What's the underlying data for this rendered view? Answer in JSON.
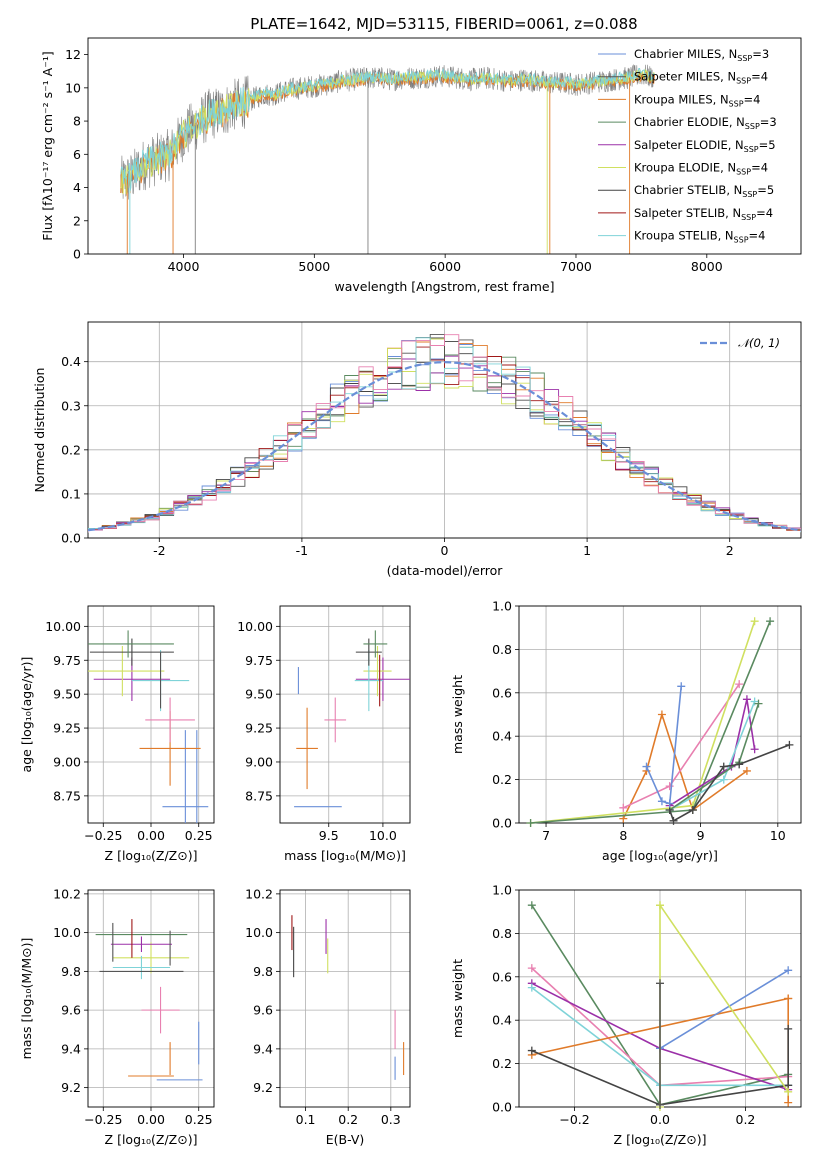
{
  "figure_title": "PLATE=1642, MJD=53115, FIBERID=0061, z=0.088",
  "colors": {
    "chabrier_miles": "#6a8fd8",
    "salpeter_miles": "#555555",
    "kroupa_miles": "#e07b2a",
    "chabrier_elodie": "#5a8a60",
    "salpeter_elodie": "#9b30a8",
    "kroupa_elodie": "#d0e060",
    "chabrier_stelib": "#444444",
    "salpeter_stelib": "#a01818",
    "kroupa_stelib": "#7fd3d8",
    "pink": "#e880b0",
    "data": "#808080",
    "grid": "#b0b0b0",
    "normal_curve": "#6a8fd8"
  },
  "chart_data": [
    {
      "id": "spectrum",
      "type": "line",
      "title": "PLATE=1642, MJD=53115, FIBERID=0061, z=0.088",
      "xlabel": "wavelength [Angstrom, rest frame]",
      "ylabel": "Flux [fλ10⁻¹⁷ erg cm⁻² s⁻¹ A⁻¹]",
      "xlim": [
        3270,
        8720
      ],
      "ylim": [
        0,
        13
      ],
      "xticks": [
        4000,
        5000,
        6000,
        7000,
        8000
      ],
      "yticks": [
        0,
        2,
        4,
        6,
        8,
        10,
        12
      ],
      "grid": false,
      "legend_position": "top-right",
      "legend": [
        {
          "label": "Chabrier MILES, N",
          "sub": "SSP",
          "suffix": "=3",
          "color": "#6a8fd8"
        },
        {
          "label": "Salpeter MILES, N",
          "sub": "SSP",
          "suffix": "=4",
          "color": "#555555"
        },
        {
          "label": "Kroupa MILES, N",
          "sub": "SSP",
          "suffix": "=4",
          "color": "#e07b2a"
        },
        {
          "label": "Chabrier ELODIE, N",
          "sub": "SSP",
          "suffix": "=3",
          "color": "#5a8a60"
        },
        {
          "label": "Salpeter ELODIE, N",
          "sub": "SSP",
          "suffix": "=5",
          "color": "#9b30a8"
        },
        {
          "label": "Kroupa ELODIE, N",
          "sub": "SSP",
          "suffix": "=4",
          "color": "#d0e060"
        },
        {
          "label": "Chabrier STELIB, N",
          "sub": "SSP",
          "suffix": "=5",
          "color": "#444444"
        },
        {
          "label": "Salpeter STELIB, N",
          "sub": "SSP",
          "suffix": "=4",
          "color": "#a01818"
        },
        {
          "label": "Kroupa STELIB, N",
          "sub": "SSP",
          "suffix": "=4",
          "color": "#7fd3d8"
        }
      ],
      "continuum": {
        "x": [
          3520,
          3600,
          3700,
          3800,
          3900,
          4000,
          4100,
          4200,
          4300,
          4400,
          4500,
          4600,
          4700,
          4800,
          4900,
          5000,
          5100,
          5200,
          5300,
          5400,
          5500,
          5600,
          5700,
          5800,
          5900,
          6000,
          6100,
          6200,
          6300,
          6400,
          6500,
          6600,
          6700,
          6800,
          6900,
          7000,
          7100,
          7200,
          7300,
          7400,
          7500,
          7600
        ],
        "y": [
          4.3,
          4.6,
          5.4,
          5.7,
          6.0,
          7.2,
          7.8,
          8.4,
          8.6,
          9.0,
          9.2,
          9.6,
          9.6,
          9.9,
          10.0,
          10.1,
          10.2,
          10.4,
          10.5,
          10.6,
          10.6,
          10.5,
          10.6,
          10.6,
          10.7,
          10.7,
          10.6,
          10.5,
          10.6,
          10.5,
          10.4,
          10.5,
          10.4,
          10.3,
          10.3,
          10.2,
          10.3,
          10.4,
          10.5,
          10.6,
          10.8,
          10.6
        ]
      },
      "artifacts": [
        {
          "x": 3570,
          "color": "#e07b2a"
        },
        {
          "x": 3590,
          "color": "#7fd3d8"
        },
        {
          "x": 3920,
          "color": "#e07b2a"
        },
        {
          "x": 4090,
          "color": "#808080"
        },
        {
          "x": 5410,
          "color": "#808080"
        },
        {
          "x": 6780,
          "color": "#d0e060"
        },
        {
          "x": 6800,
          "color": "#e07b2a"
        },
        {
          "x": 7410,
          "color": "#e07b2a"
        }
      ]
    },
    {
      "id": "residuals",
      "type": "line",
      "xlabel": "(data-model)/error",
      "ylabel": "Normed distribution",
      "xlim": [
        -2.5,
        2.5
      ],
      "ylim": [
        0,
        0.49
      ],
      "xticks": [
        -2,
        -1,
        0,
        1,
        2
      ],
      "yticks": [
        0.0,
        0.1,
        0.2,
        0.3,
        0.4
      ],
      "grid": true,
      "legend_position": "top-right",
      "legend": [
        {
          "label": "𝒩(0, 1)",
          "color": "#6a8fd8",
          "dashed": true
        }
      ],
      "series": [
        {
          "name": "N(0,1)",
          "distribution": "normal",
          "mean": 0,
          "sigma": 1
        }
      ],
      "bin_edges_range": [
        -2.5,
        2.5
      ],
      "bin_width": 0.1
    },
    {
      "id": "age_vs_Z",
      "type": "scatter",
      "xlabel": "Z [log₁₀(Z/Z⊙)]",
      "ylabel": "age  [log₁₀(age/yr)]",
      "xlim": [
        -0.33,
        0.33
      ],
      "ylim": [
        8.55,
        10.15
      ],
      "xticks": [
        -0.25,
        0.0,
        0.25
      ],
      "xticklabels": [
        "−0.25",
        "0.00",
        "0.25"
      ],
      "yticks": [
        8.75,
        9.0,
        9.25,
        9.5,
        9.75,
        10.0
      ],
      "yticklabels": [
        "8.75",
        "9.00",
        "9.25",
        "9.50",
        "9.75",
        "10.00"
      ],
      "grid": true,
      "points": [
        {
          "x": 0.18,
          "y": 8.67,
          "xerr": 0.12,
          "yerr": 1.13,
          "color": "#6a8fd8"
        },
        {
          "x": 0.24,
          "y": 8.67,
          "xerr": 0.0,
          "yerr": 1.13,
          "color": "#6a8fd8"
        },
        {
          "x": 0.1,
          "y": 9.1,
          "xerr": 0.16,
          "yerr": 0.55,
          "color": "#e07b2a"
        },
        {
          "x": 0.1,
          "y": 9.31,
          "xerr": 0.13,
          "yerr": 0.33,
          "color": "#e880b0"
        },
        {
          "x": -0.1,
          "y": 9.61,
          "xerr": 0.2,
          "yerr": 0.32,
          "color": "#9b30a8"
        },
        {
          "x": -0.15,
          "y": 9.67,
          "xerr": 0.22,
          "yerr": 0.37,
          "color": "#d0e060"
        },
        {
          "x": 0.05,
          "y": 9.6,
          "xerr": 0.15,
          "yerr": 0.45,
          "color": "#7fd3d8"
        },
        {
          "x": -0.1,
          "y": 9.81,
          "xerr": 0.22,
          "yerr": 0.2,
          "color": "#444444"
        },
        {
          "x": -0.12,
          "y": 9.87,
          "xerr": 0.24,
          "yerr": 0.2,
          "color": "#5a8a60"
        },
        {
          "x": 0.05,
          "y": 9.6,
          "xerr": 0.0,
          "yerr": 0.41,
          "color": "#555555"
        }
      ]
    },
    {
      "id": "age_vs_mass",
      "type": "scatter",
      "xlabel": "mass [log₁₀(M/M⊙)]",
      "ylabel": "",
      "xlim": [
        9.05,
        10.25
      ],
      "ylim": [
        8.55,
        10.15
      ],
      "xticks": [
        9.5,
        10.0
      ],
      "xticklabels": [
        "9.5",
        "10.0"
      ],
      "yticks": [
        8.75,
        9.0,
        9.25,
        9.5,
        9.75,
        10.0
      ],
      "yticklabels": [
        "8.75",
        "9.00",
        "9.25",
        "9.50",
        "9.75",
        "10.00"
      ],
      "grid": true,
      "points": [
        {
          "x": 9.4,
          "y": 8.67,
          "xerr": 0.22,
          "yerr": 0.0,
          "color": "#6a8fd8"
        },
        {
          "x": 9.22,
          "y": 9.6,
          "xerr": 0.0,
          "yerr": 0.2,
          "color": "#6a8fd8"
        },
        {
          "x": 9.3,
          "y": 9.1,
          "xerr": 0.1,
          "yerr": 0.6,
          "color": "#e07b2a"
        },
        {
          "x": 9.56,
          "y": 9.31,
          "xerr": 0.1,
          "yerr": 0.33,
          "color": "#e880b0"
        },
        {
          "x": 10.0,
          "y": 9.61,
          "xerr": 0.25,
          "yerr": 0.32,
          "color": "#9b30a8"
        },
        {
          "x": 9.95,
          "y": 9.67,
          "xerr": 0.13,
          "yerr": 0.37,
          "color": "#d0e060"
        },
        {
          "x": 9.87,
          "y": 9.6,
          "xerr": 0.13,
          "yerr": 0.45,
          "color": "#7fd3d8"
        },
        {
          "x": 9.87,
          "y": 9.81,
          "xerr": 0.12,
          "yerr": 0.2,
          "color": "#444444"
        },
        {
          "x": 9.93,
          "y": 9.87,
          "xerr": 0.11,
          "yerr": 0.2,
          "color": "#5a8a60"
        },
        {
          "x": 9.97,
          "y": 9.6,
          "xerr": 0.0,
          "yerr": 0.38,
          "color": "#a01818"
        }
      ]
    },
    {
      "id": "weight_vs_age",
      "type": "line",
      "xlabel": "age  [log₁₀(age/yr)]",
      "ylabel": "mass weight",
      "xlim": [
        6.65,
        10.3
      ],
      "ylim": [
        0,
        1.0
      ],
      "xticks": [
        7,
        8,
        9,
        10
      ],
      "yticks": [
        0.0,
        0.2,
        0.4,
        0.6,
        0.8,
        1.0
      ],
      "yticklabels": [
        "0.0",
        "0.2",
        "0.4",
        "0.6",
        "0.8",
        "1.0"
      ],
      "grid": true,
      "series": [
        {
          "color": "#e07b2a",
          "x": [
            8.0,
            8.3,
            8.5,
            8.9,
            9.6
          ],
          "y": [
            0.02,
            0.24,
            0.5,
            0.06,
            0.24
          ]
        },
        {
          "color": "#e880b0",
          "x": [
            8.0,
            8.6,
            9.5
          ],
          "y": [
            0.07,
            0.17,
            0.64
          ]
        },
        {
          "color": "#d0e060",
          "x": [
            6.8,
            8.9,
            9.7
          ],
          "y": [
            0.0,
            0.08,
            0.93
          ]
        },
        {
          "color": "#5a8a60",
          "x": [
            6.8,
            8.9,
            9.9
          ],
          "y": [
            0.0,
            0.06,
            0.93
          ]
        },
        {
          "color": "#9b30a8",
          "x": [
            8.6,
            9.4,
            9.6,
            9.7
          ],
          "y": [
            0.08,
            0.26,
            0.57,
            0.34
          ]
        },
        {
          "color": "#7fd3d8",
          "x": [
            8.6,
            9.3,
            9.7
          ],
          "y": [
            0.06,
            0.2,
            0.56
          ]
        },
        {
          "color": "#5a8a60",
          "x": [
            8.6,
            9.5,
            9.75
          ],
          "y": [
            0.06,
            0.28,
            0.55
          ]
        },
        {
          "color": "#444444",
          "x": [
            8.6,
            8.65,
            8.9,
            9.3,
            9.5,
            10.15
          ],
          "y": [
            0.06,
            0.01,
            0.06,
            0.26,
            0.27,
            0.36
          ]
        },
        {
          "color": "#6a8fd8",
          "x": [
            8.3,
            8.5,
            8.6,
            8.75
          ],
          "y": [
            0.26,
            0.1,
            0.09,
            0.63
          ]
        }
      ]
    },
    {
      "id": "mass_vs_Z",
      "type": "scatter",
      "xlabel": "Z [log₁₀(Z/Z⊙)]",
      "ylabel": "mass [log₁₀(M/M⊙)]",
      "xlim": [
        -0.33,
        0.33
      ],
      "ylim": [
        9.1,
        10.22
      ],
      "xticks": [
        -0.25,
        0.0,
        0.25
      ],
      "xticklabels": [
        "−0.25",
        "0.00",
        "0.25"
      ],
      "yticks": [
        9.2,
        9.4,
        9.6,
        9.8,
        10.0,
        10.2
      ],
      "yticklabels": [
        "9.2",
        "9.4",
        "9.6",
        "9.8",
        "10.0",
        "10.2"
      ],
      "grid": true,
      "points": [
        {
          "x": 0.15,
          "y": 9.24,
          "xerr": 0.12,
          "yerr": 0.0,
          "color": "#6a8fd8"
        },
        {
          "x": 0.25,
          "y": 9.43,
          "xerr": 0.0,
          "yerr": 0.22,
          "color": "#6a8fd8"
        },
        {
          "x": 0.0,
          "y": 9.26,
          "xerr": 0.12,
          "yerr": 0.0,
          "color": "#e07b2a"
        },
        {
          "x": 0.1,
          "y": 9.35,
          "xerr": 0.0,
          "yerr": 0.17,
          "color": "#e07b2a"
        },
        {
          "x": 0.05,
          "y": 9.6,
          "xerr": 0.1,
          "yerr": 0.24,
          "color": "#e880b0"
        },
        {
          "x": 0.0,
          "y": 9.87,
          "xerr": 0.2,
          "yerr": 0.16,
          "color": "#d0e060"
        },
        {
          "x": -0.05,
          "y": 9.94,
          "xerr": 0.16,
          "yerr": 0.08,
          "color": "#9b30a8"
        },
        {
          "x": -0.05,
          "y": 9.82,
          "xerr": 0.15,
          "yerr": 0.12,
          "color": "#7fd3d8"
        },
        {
          "x": -0.05,
          "y": 9.8,
          "xerr": 0.22,
          "yerr": 0.0,
          "color": "#444444"
        },
        {
          "x": -0.05,
          "y": 9.99,
          "xerr": 0.24,
          "yerr": 0.0,
          "color": "#5a8a60"
        },
        {
          "x": -0.1,
          "y": 9.97,
          "xerr": 0.0,
          "yerr": 0.2,
          "color": "#a01818"
        },
        {
          "x": -0.2,
          "y": 9.95,
          "xerr": 0.0,
          "yerr": 0.2,
          "color": "#555555"
        },
        {
          "x": 0.1,
          "y": 9.92,
          "xerr": 0.0,
          "yerr": 0.18,
          "color": "#555555"
        }
      ]
    },
    {
      "id": "mass_vs_ebv",
      "type": "scatter",
      "xlabel": "E(B-V)",
      "ylabel": "",
      "xlim": [
        0.04,
        0.345
      ],
      "ylim": [
        9.1,
        10.22
      ],
      "xticks": [
        0.1,
        0.2,
        0.3
      ],
      "xticklabels": [
        "0.1",
        "0.2",
        "0.3"
      ],
      "yticks": [
        9.2,
        9.4,
        9.6,
        9.8,
        10.0,
        10.2
      ],
      "yticklabels": [
        "9.2",
        "9.4",
        "9.6",
        "9.8",
        "10.0",
        "10.2"
      ],
      "grid": true,
      "points": [
        {
          "x": 0.068,
          "y": 10.0,
          "xerr": 0.0,
          "yerr": 0.18,
          "color": "#a01818"
        },
        {
          "x": 0.072,
          "y": 9.9,
          "xerr": 0.0,
          "yerr": 0.26,
          "color": "#444444"
        },
        {
          "x": 0.148,
          "y": 9.98,
          "xerr": 0.0,
          "yerr": 0.18,
          "color": "#9b30a8"
        },
        {
          "x": 0.152,
          "y": 9.88,
          "xerr": 0.0,
          "yerr": 0.18,
          "color": "#d0e060"
        },
        {
          "x": 0.31,
          "y": 9.5,
          "xerr": 0.0,
          "yerr": 0.2,
          "color": "#e880b0"
        },
        {
          "x": 0.31,
          "y": 9.3,
          "xerr": 0.0,
          "yerr": 0.12,
          "color": "#6a8fd8"
        },
        {
          "x": 0.33,
          "y": 9.35,
          "xerr": 0.0,
          "yerr": 0.17,
          "color": "#e07b2a"
        }
      ]
    },
    {
      "id": "weight_vs_Z",
      "type": "line",
      "xlabel": "Z [log₁₀(Z/Z⊙)]",
      "ylabel": "mass weight",
      "xlim": [
        -0.33,
        0.33
      ],
      "ylim": [
        0,
        1.0
      ],
      "xticks": [
        -0.2,
        0.0,
        0.2
      ],
      "xticklabels": [
        "−0.2",
        "0.0",
        "0.2"
      ],
      "yticks": [
        0.0,
        0.2,
        0.4,
        0.6,
        0.8,
        1.0
      ],
      "yticklabels": [
        "0.0",
        "0.2",
        "0.4",
        "0.6",
        "0.8",
        "1.0"
      ],
      "grid": true,
      "series": [
        {
          "color": "#5a8a60",
          "x": [
            -0.3,
            0.0,
            0.3
          ],
          "y": [
            0.93,
            0.01,
            0.15
          ]
        },
        {
          "color": "#e880b0",
          "x": [
            -0.3,
            0.0,
            0.3
          ],
          "y": [
            0.64,
            0.1,
            0.14
          ]
        },
        {
          "color": "#9b30a8",
          "x": [
            -0.3,
            0.0,
            0.3
          ],
          "y": [
            0.57,
            0.27,
            0.08
          ]
        },
        {
          "color": "#7fd3d8",
          "x": [
            -0.3,
            0.0,
            0.3
          ],
          "y": [
            0.55,
            0.1,
            0.1
          ]
        },
        {
          "color": "#e07b2a",
          "x": [
            -0.3,
            0.3
          ],
          "y": [
            0.24,
            0.5
          ]
        },
        {
          "color": "#e07b2a",
          "x": [
            0.3,
            0.3
          ],
          "y": [
            0.5,
            0.02
          ]
        },
        {
          "color": "#444444",
          "x": [
            -0.3,
            0.0,
            0.3,
            0.3
          ],
          "y": [
            0.26,
            0.01,
            0.1,
            0.36
          ]
        },
        {
          "color": "#6a8fd8",
          "x": [
            0.0,
            0.3
          ],
          "y": [
            0.27,
            0.63
          ]
        },
        {
          "color": "#d0e060",
          "x": [
            0.0,
            0.3
          ],
          "y": [
            0.93,
            0.07
          ]
        },
        {
          "color": "#d0e060",
          "x": [
            0.0,
            0.0
          ],
          "y": [
            0.93,
            0.0
          ]
        },
        {
          "color": "#555555",
          "x": [
            0.0,
            0.0
          ],
          "y": [
            0.57,
            0.01
          ]
        }
      ]
    }
  ]
}
